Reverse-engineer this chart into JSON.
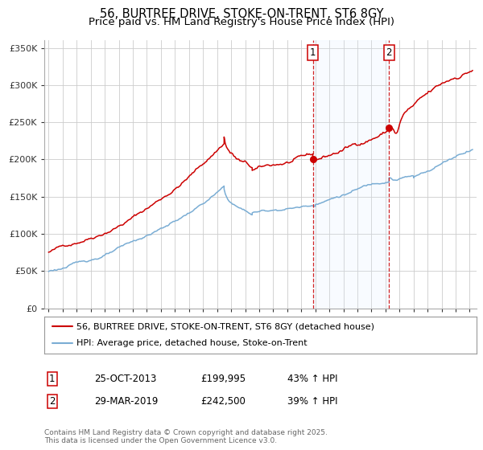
{
  "title": "56, BURTREE DRIVE, STOKE-ON-TRENT, ST6 8GY",
  "subtitle": "Price paid vs. HM Land Registry's House Price Index (HPI)",
  "ylim": [
    0,
    360000
  ],
  "yticks": [
    0,
    50000,
    100000,
    150000,
    200000,
    250000,
    300000,
    350000
  ],
  "ytick_labels": [
    "£0",
    "£50K",
    "£100K",
    "£150K",
    "£200K",
    "£250K",
    "£300K",
    "£350K"
  ],
  "xlim_start": 1994.7,
  "xlim_end": 2025.5,
  "property_color": "#cc0000",
  "hpi_color": "#7aadd4",
  "shaded_color": "#ddeeff",
  "marker1_date": 2013.82,
  "marker1_value": 199995,
  "marker2_date": 2019.25,
  "marker2_value": 242500,
  "marker1_label": "1",
  "marker2_label": "2",
  "vline_color": "#cc0000",
  "legend_property": "56, BURTREE DRIVE, STOKE-ON-TRENT, ST6 8GY (detached house)",
  "legend_hpi": "HPI: Average price, detached house, Stoke-on-Trent",
  "table_row1": [
    "1",
    "25-OCT-2013",
    "£199,995",
    "43% ↑ HPI"
  ],
  "table_row2": [
    "2",
    "29-MAR-2019",
    "£242,500",
    "39% ↑ HPI"
  ],
  "footnote": "Contains HM Land Registry data © Crown copyright and database right 2025.\nThis data is licensed under the Open Government Licence v3.0.",
  "title_fontsize": 10.5,
  "subtitle_fontsize": 9.5,
  "tick_fontsize": 8,
  "legend_fontsize": 8,
  "table_fontsize": 8.5,
  "footnote_fontsize": 6.5,
  "background_color": "#ffffff",
  "grid_color": "#cccccc"
}
